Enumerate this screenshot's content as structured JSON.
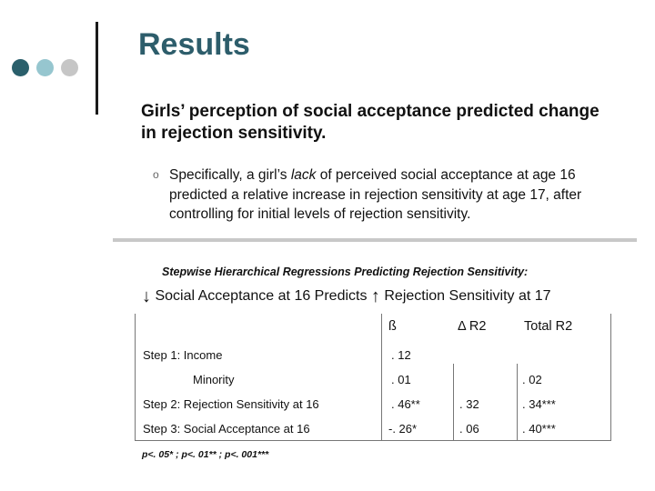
{
  "slide": {
    "title": "Results",
    "lead": "Girls’ perception of social acceptance predicted change in rejection sensitivity.",
    "bullet": {
      "marker": "o",
      "before": "Specifically, a girl’s ",
      "emph": "lack",
      "after": " of perceived social acceptance at age 16 predicted a relative increase in rejection sensitivity at age 17, after controlling for initial levels of rejection sensitivity."
    },
    "colors": {
      "title": "#2d5d6b",
      "dot_dark": "#2a5f6b",
      "dot_mid": "#96c6cf",
      "dot_light": "#c6c6c6"
    }
  },
  "table": {
    "caption": "Stepwise Hierarchical Regressions Predicting Rejection Sensitivity:",
    "heading": {
      "arrow_down": "↓",
      "part1": "Social Acceptance at 16 Predicts ",
      "arrow_up": "↑",
      "part2": "Rejection Sensitivity at 17"
    },
    "columns": [
      "ß",
      "Δ R2",
      "Total R2"
    ],
    "rows": [
      {
        "label": "Step 1:  Income",
        "beta": ". 12",
        "dr2": "",
        "tr2": ""
      },
      {
        "label": "Minority",
        "beta": ". 01",
        "dr2": "",
        "tr2": ". 02"
      },
      {
        "label": "Step 2:  Rejection Sensitivity at 16",
        "beta": ". 46**",
        "dr2": ". 32",
        "tr2": ". 34***"
      },
      {
        "label": "Step 3:  Social Acceptance at 16",
        "beta": "-. 26*",
        "dr2": ". 06",
        "tr2": ". 40***"
      }
    ],
    "footnote": "p<. 05* ;  p<. 01** ; p<. 001***"
  }
}
